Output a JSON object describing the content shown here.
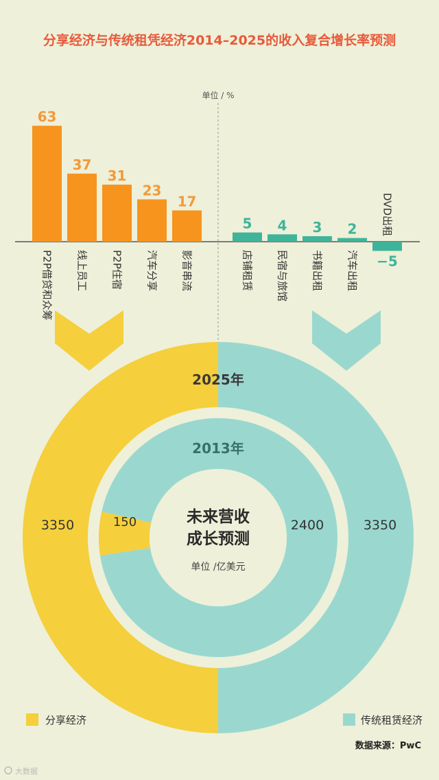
{
  "title": "分享经济与传统租凭经济2014–2025的收入复合增长率预测",
  "unit_top": "单位 / %",
  "colors": {
    "background": "#eef0d9",
    "orange": "#f7941e",
    "orange_label": "#f29a3a",
    "teal": "#3fb49a",
    "light_teal": "#9ad8cf",
    "yellow": "#f5cf3c",
    "title": "#e8593a"
  },
  "chart_data": [
    {
      "type": "bar",
      "ylabel": "单位 / %",
      "series": [
        {
          "name": "分享经济",
          "categories": [
            "P2P借贷和众筹",
            "线上员工",
            "P2P住宿",
            "汽车分享",
            "影音串流"
          ],
          "values": [
            63,
            37,
            31,
            23,
            17
          ],
          "color": "#f7941e"
        },
        {
          "name": "传统租赁经济",
          "categories": [
            "店铺租赁",
            "民宿与旅馆",
            "书籍出租",
            "汽车出租",
            "DVD出租"
          ],
          "values": [
            5,
            4,
            3,
            2,
            -5
          ],
          "color": "#3fb49a"
        }
      ]
    },
    {
      "type": "pie",
      "title": "未来营收成长预测",
      "unit": "单位 /亿美元",
      "rings": [
        {
          "label": "2013年",
          "series": [
            {
              "name": "分享经济",
              "value": 150
            },
            {
              "name": "传统租赁经济",
              "value": 2400
            }
          ]
        },
        {
          "label": "2025年",
          "series": [
            {
              "name": "分享经济",
              "value": 3350
            },
            {
              "name": "传统租赁经济",
              "value": 3350
            }
          ]
        }
      ]
    }
  ],
  "legend": {
    "sharing": "分享经济",
    "traditional": "传统租赁经济"
  },
  "center": {
    "line1": "未来营收",
    "line2": "成长预测",
    "unit": "单位 /亿美元"
  },
  "source": "数据来源：PwC",
  "watermark": "大数据"
}
